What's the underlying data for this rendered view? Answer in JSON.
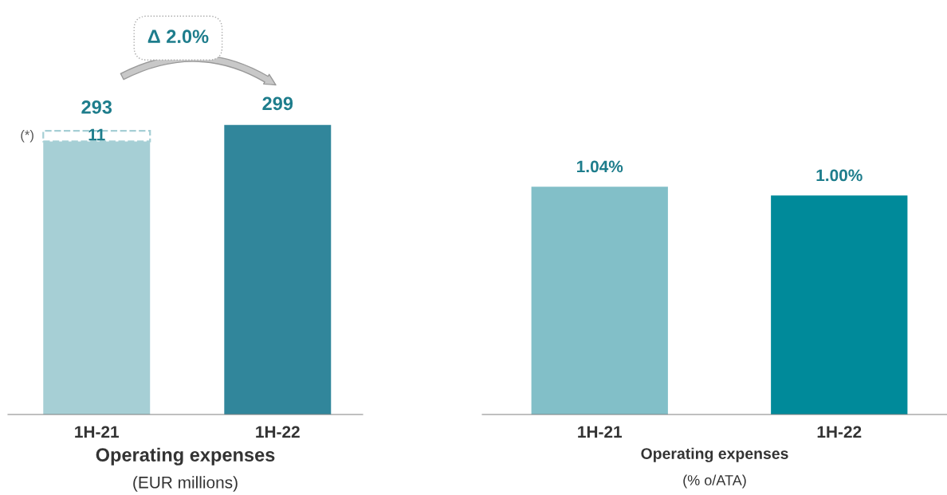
{
  "chart_data": [
    {
      "type": "bar",
      "stacked": true,
      "xlabel": "Operating expenses",
      "categories": [
        "1H-21",
        "1H-22"
      ],
      "series": [
        {
          "colors": [
            "#a6cfd5",
            "#31869b"
          ],
          "values": [
            282,
            299
          ],
          "value_labels": [
            null,
            "299"
          ]
        },
        {
          "color": "#a6cfd5",
          "line_style": "dashed",
          "values": [
            11,
            null
          ],
          "value_labels": [
            "11",
            null
          ]
        }
      ],
      "totals": [
        "293",
        null
      ],
      "annotations": [
        "Δ 2.0%",
        "(*)",
        "(EUR millions)"
      ]
    },
    {
      "type": "bar",
      "xlabel": "Operating expenses",
      "categories": [
        "1H-21",
        "1H-22"
      ],
      "values": [
        1.04,
        1.0
      ],
      "colors": [
        "#82bfc8",
        "#008a9a"
      ],
      "value_labels": [
        "1.04%",
        "1.00%"
      ],
      "annotations": [
        "(% o/ATA)"
      ]
    }
  ]
}
